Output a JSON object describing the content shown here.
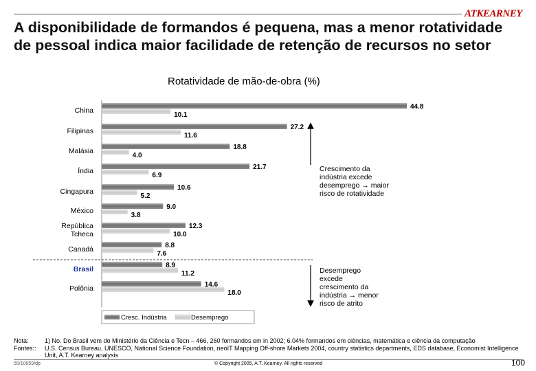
{
  "header": {
    "logo": "ATKEARNEY",
    "title": "A disponibilidade de formandos é pequena, mas a menor rotatividade de pessoal indica maior facilidade de retenção de recursos no setor"
  },
  "chart_data": {
    "type": "bar",
    "orientation": "horizontal",
    "title": "Rotatividade de mão-de-obra (%)",
    "categories": [
      "China",
      "Filipinas",
      "Malásia",
      "Índia",
      "Cingapura",
      "México",
      "República Tcheca",
      "Canadá",
      "Brasil",
      "Polônia"
    ],
    "series": [
      {
        "name": "Cresc. Indústria",
        "values": [
          44.8,
          27.2,
          18.8,
          21.7,
          10.6,
          9.0,
          12.3,
          8.8,
          8.9,
          14.6
        ]
      },
      {
        "name": "Desemprego",
        "values": [
          10.1,
          11.6,
          4.0,
          6.9,
          5.2,
          3.8,
          10.0,
          7.6,
          11.2,
          18.0
        ]
      }
    ],
    "value_labels": {
      "series0": [
        "44.8",
        "27.2",
        "18.8",
        "21.7",
        "10.6",
        "9.0",
        "12.3",
        "8.8",
        "8.9",
        "14.6"
      ],
      "series1": [
        "10.1",
        "11.6",
        "4.0",
        "6.9",
        "5.2",
        "3.8",
        "10.0",
        "7.6",
        "11.2",
        "18.0"
      ]
    },
    "category_lines": [
      [
        "China"
      ],
      [
        "Filipinas"
      ],
      [
        "Malásia"
      ],
      [
        "Índia"
      ],
      [
        "Cingapura"
      ],
      [
        "México"
      ],
      [
        "República",
        "Tcheca"
      ],
      [
        "Canadá"
      ],
      [
        "Brasil"
      ],
      [
        "Polônia"
      ]
    ],
    "highlight_category": "Brasil",
    "xlim": [
      0,
      45
    ],
    "legend_position": "bottom",
    "colors": {
      "series0": "#7a7a7a",
      "series1": "#d2d2d2",
      "highlight": "#1f3a93"
    }
  },
  "annotations": {
    "upper": "Crescimento da indústria excede desemprego → maior risco de rotatividade",
    "lower": "Desemprego excede crescimento da indústria → menor risco de atrito"
  },
  "notes": {
    "nota_label": "Nota:",
    "nota_text": "1) No. Do Brasil vem do Ministério da Ciência e Tecn – 466, 260 formandos em in 2002; 6.04% formandos em ciências, matemática e ciência da computação",
    "fontes_label": "Fontes::",
    "fontes_text": "U.S. Census Bureau, UNESCO, National Science Foundation, neoIT Mapping Off-shore Markets 2004, country statistics departments, EDS database, Economist Intelligence Unit, A.T. Kearney analysis"
  },
  "footer": {
    "doc_id": "55/10059/dp",
    "copyright": "© Copyright 2005, A.T. Kearney. All rights reserved",
    "page": "100"
  }
}
